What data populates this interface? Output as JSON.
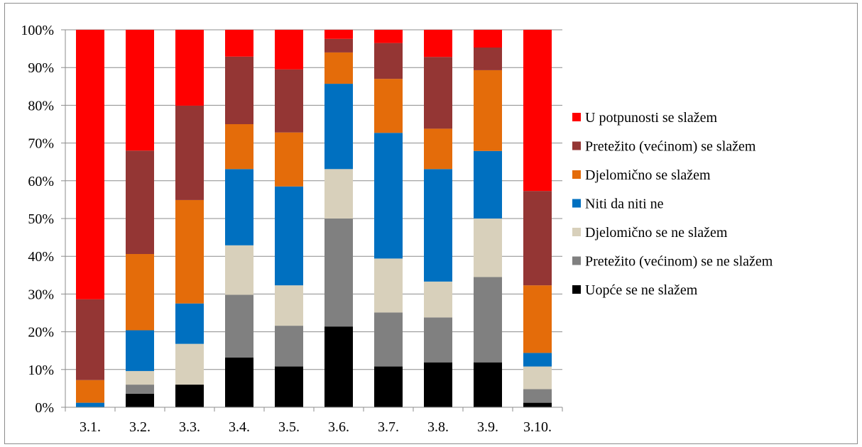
{
  "chart_data": {
    "type": "bar",
    "stacked": "percent",
    "title": "",
    "xlabel": "",
    "ylabel": "",
    "ylim": [
      0,
      100
    ],
    "y_tick_labels": [
      "0%",
      "10%",
      "20%",
      "30%",
      "40%",
      "50%",
      "60%",
      "70%",
      "80%",
      "90%",
      "100%"
    ],
    "grid": true,
    "legend_position": "right",
    "categories": [
      "3.1.",
      "3.2.",
      "3.3.",
      "3.4.",
      "3.5.",
      "3.6.",
      "3.7.",
      "3.8.",
      "3.9.",
      "3.10."
    ],
    "series": [
      {
        "name": "Uopće se ne slažem",
        "color": "#000000",
        "values": [
          0,
          3.6,
          6.0,
          13.2,
          10.8,
          21.4,
          10.8,
          11.9,
          11.9,
          1.2
        ]
      },
      {
        "name": "Pretežito (većinom) se ne slažem",
        "color": "#808080",
        "values": [
          0,
          2.4,
          0,
          16.6,
          10.8,
          28.6,
          14.3,
          11.9,
          22.6,
          3.6
        ]
      },
      {
        "name": "Djelomično se ne slažem",
        "color": "#d8d0bb",
        "values": [
          0,
          3.6,
          10.8,
          13.1,
          10.7,
          13.1,
          14.3,
          9.5,
          15.5,
          6.0
        ]
      },
      {
        "name": "Niti da niti ne",
        "color": "#0070c0",
        "values": [
          1.2,
          10.8,
          10.7,
          20.2,
          26.2,
          22.6,
          33.3,
          29.8,
          17.9,
          3.6
        ]
      },
      {
        "name": "Djelomično se slažem",
        "color": "#e46c0a",
        "values": [
          6.0,
          20.2,
          27.4,
          11.9,
          14.3,
          8.3,
          14.3,
          10.7,
          21.4,
          17.9
        ]
      },
      {
        "name": "Pretežito (većinom) se slažem",
        "color": "#943634",
        "values": [
          21.4,
          27.4,
          25.0,
          17.9,
          16.7,
          3.6,
          9.5,
          19.0,
          6.0,
          25.0
        ]
      },
      {
        "name": "U potpunosti se slažem",
        "color": "#ff0000",
        "values": [
          71.4,
          32.0,
          20.1,
          7.1,
          10.5,
          2.4,
          3.5,
          7.2,
          4.7,
          42.7
        ]
      }
    ]
  }
}
